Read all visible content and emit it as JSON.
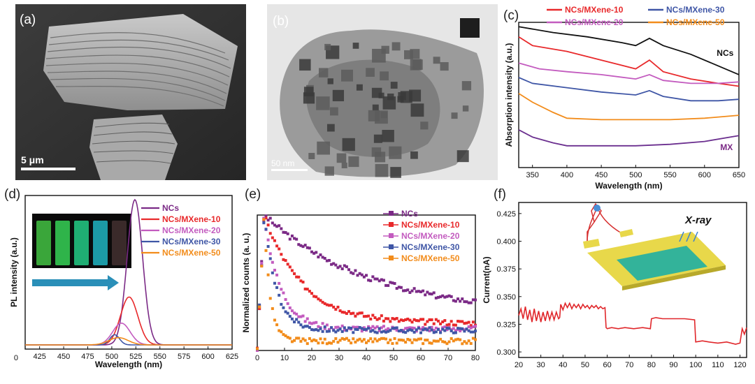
{
  "panel_a": {
    "label": "(a)",
    "scale_bar": "5 μm"
  },
  "panel_b": {
    "label": "(b)",
    "scale_bar": "50 nm"
  },
  "colors": {
    "NCs": "#7b2a86",
    "NCs/MXene-10": "#e8292b",
    "NCs/MXene-20": "#c35bbf",
    "NCs/MXene-30": "#3f56a6",
    "NCs/MXene-50": "#f28c1b",
    "MX": "#6b2f8f"
  },
  "chart_data": [
    {
      "panel": "(c)",
      "type": "line",
      "xlabel": "Wavelength (nm)",
      "ylabel": "Absorption intensity (a.u.)",
      "xlim": [
        330,
        650
      ],
      "xticks": [
        350,
        400,
        450,
        500,
        550,
        600,
        650
      ],
      "legend": [
        "NCs/MXene-10",
        "NCs/MXene-30",
        "NCs/MXene-20",
        "NCs/MXene-50"
      ],
      "line_labels": [
        "NCs",
        "MX"
      ],
      "series": [
        {
          "name": "NCs",
          "color": "#111111",
          "x": [
            330,
            380,
            430,
            480,
            500,
            520,
            540,
            580,
            620,
            650
          ],
          "y": [
            0.97,
            0.93,
            0.9,
            0.86,
            0.84,
            0.89,
            0.84,
            0.78,
            0.7,
            0.64
          ]
        },
        {
          "name": "NCs/MXene-10",
          "color": "#e8292b",
          "x": [
            330,
            350,
            400,
            450,
            500,
            520,
            540,
            580,
            620,
            650
          ],
          "y": [
            0.9,
            0.84,
            0.8,
            0.74,
            0.68,
            0.74,
            0.66,
            0.61,
            0.58,
            0.56
          ]
        },
        {
          "name": "NCs/MXene-20",
          "color": "#c35bbf",
          "x": [
            330,
            360,
            400,
            450,
            500,
            520,
            540,
            580,
            620,
            650
          ],
          "y": [
            0.72,
            0.68,
            0.66,
            0.64,
            0.61,
            0.64,
            0.6,
            0.58,
            0.58,
            0.59
          ]
        },
        {
          "name": "NCs/MXene-30",
          "color": "#3f56a6",
          "x": [
            330,
            350,
            400,
            450,
            500,
            520,
            540,
            580,
            620,
            650
          ],
          "y": [
            0.62,
            0.58,
            0.55,
            0.52,
            0.5,
            0.53,
            0.49,
            0.46,
            0.46,
            0.47
          ]
        },
        {
          "name": "NCs/MXene-50",
          "color": "#f28c1b",
          "x": [
            330,
            350,
            380,
            400,
            450,
            500,
            550,
            600,
            650
          ],
          "y": [
            0.51,
            0.45,
            0.38,
            0.34,
            0.33,
            0.33,
            0.33,
            0.34,
            0.36
          ]
        },
        {
          "name": "MX",
          "color": "#6b2f8f",
          "x": [
            330,
            350,
            380,
            400,
            450,
            500,
            550,
            600,
            650
          ],
          "y": [
            0.26,
            0.21,
            0.17,
            0.15,
            0.15,
            0.15,
            0.16,
            0.18,
            0.22
          ]
        }
      ]
    },
    {
      "panel": "(d)",
      "type": "line",
      "xlabel": "Wavelength (nm)",
      "ylabel": "PL intensity (a.u.)",
      "xlim": [
        410,
        625
      ],
      "xticks": [
        425,
        450,
        475,
        500,
        525,
        550,
        575,
        600,
        625
      ],
      "yticks": [
        0
      ],
      "legend": [
        "NCs",
        "NCs/MXene-10",
        "NCs/MXene-20",
        "NCs/MXene-30",
        "NCs/MXene-50"
      ],
      "series": [
        {
          "name": "NCs",
          "color": "#7b2a86",
          "peak": 524,
          "width": 8,
          "amp": 1.0
        },
        {
          "name": "NCs/MXene-10",
          "color": "#e8292b",
          "peak": 518,
          "width": 9,
          "amp": 0.33
        },
        {
          "name": "NCs/MXene-20",
          "color": "#c35bbf",
          "peak": 510,
          "width": 9,
          "amp": 0.15
        },
        {
          "name": "NCs/MXene-30",
          "color": "#3f56a6",
          "peak": 503,
          "width": 5,
          "amp": 0.07
        },
        {
          "name": "NCs/MXene-50",
          "color": "#f28c1b",
          "peak": 507,
          "width": 10,
          "amp": 0.05
        }
      ]
    },
    {
      "panel": "(e)",
      "type": "scatter",
      "ylabel": "Normalized counts (a. u.)",
      "xlim": [
        0,
        80
      ],
      "xticks": [
        0,
        10,
        20,
        30,
        40,
        50,
        60,
        70,
        80
      ],
      "legend": [
        "NCs",
        "NCs/MXene-10",
        "NCs/MXene-20",
        "NCs/MXene-30",
        "NCs/MXene-50"
      ],
      "series": [
        {
          "name": "NCs",
          "color": "#7b2a86",
          "tau": 40,
          "floor": 0.25
        },
        {
          "name": "NCs/MXene-10",
          "color": "#e8292b",
          "tau": 14,
          "floor": 0.2
        },
        {
          "name": "NCs/MXene-20",
          "color": "#c35bbf",
          "tau": 6,
          "floor": 0.16
        },
        {
          "name": "NCs/MXene-30",
          "color": "#3f56a6",
          "tau": 4.5,
          "floor": 0.15
        },
        {
          "name": "NCs/MXene-50",
          "color": "#f28c1b",
          "tau": 2.2,
          "floor": 0.07
        }
      ]
    },
    {
      "panel": "(f)",
      "type": "line",
      "ylabel": "Current(nA)",
      "xlim": [
        20,
        123
      ],
      "ylim": [
        0.295,
        0.435
      ],
      "xticks": [
        20,
        30,
        40,
        50,
        60,
        70,
        80,
        90,
        100,
        110,
        120
      ],
      "yticks": [
        0.3,
        0.325,
        0.35,
        0.375,
        0.4,
        0.425
      ],
      "yticklabels": [
        "0.300",
        "0.325",
        "0.350",
        "0.375",
        "0.400",
        "0.425"
      ],
      "annotation": "X-ray",
      "series": [
        {
          "name": "current",
          "color": "#e0262a",
          "x": [
            20,
            21,
            22,
            23,
            24,
            25,
            26,
            27,
            28,
            29,
            30,
            31,
            32,
            33,
            34,
            35,
            36,
            37,
            38,
            38.5,
            39,
            40,
            41,
            42,
            43,
            44,
            45,
            46,
            47,
            48,
            49,
            50,
            51,
            52,
            53,
            54,
            55,
            56,
            57,
            58,
            59,
            59.5,
            60,
            62,
            65,
            68,
            72,
            76,
            79.5,
            80,
            82,
            85,
            90,
            95,
            99.5,
            100,
            103,
            106,
            110,
            114,
            118,
            120,
            121,
            122,
            123
          ],
          "y": [
            0.333,
            0.339,
            0.33,
            0.341,
            0.329,
            0.338,
            0.327,
            0.339,
            0.328,
            0.337,
            0.327,
            0.336,
            0.328,
            0.337,
            0.329,
            0.336,
            0.329,
            0.336,
            0.33,
            0.331,
            0.343,
            0.338,
            0.344,
            0.34,
            0.344,
            0.339,
            0.343,
            0.34,
            0.343,
            0.339,
            0.343,
            0.34,
            0.342,
            0.339,
            0.342,
            0.34,
            0.342,
            0.339,
            0.341,
            0.339,
            0.34,
            0.322,
            0.321,
            0.322,
            0.321,
            0.322,
            0.321,
            0.322,
            0.321,
            0.33,
            0.331,
            0.33,
            0.33,
            0.33,
            0.329,
            0.309,
            0.31,
            0.309,
            0.308,
            0.309,
            0.307,
            0.308,
            0.321,
            0.316,
            0.322
          ]
        }
      ]
    }
  ]
}
